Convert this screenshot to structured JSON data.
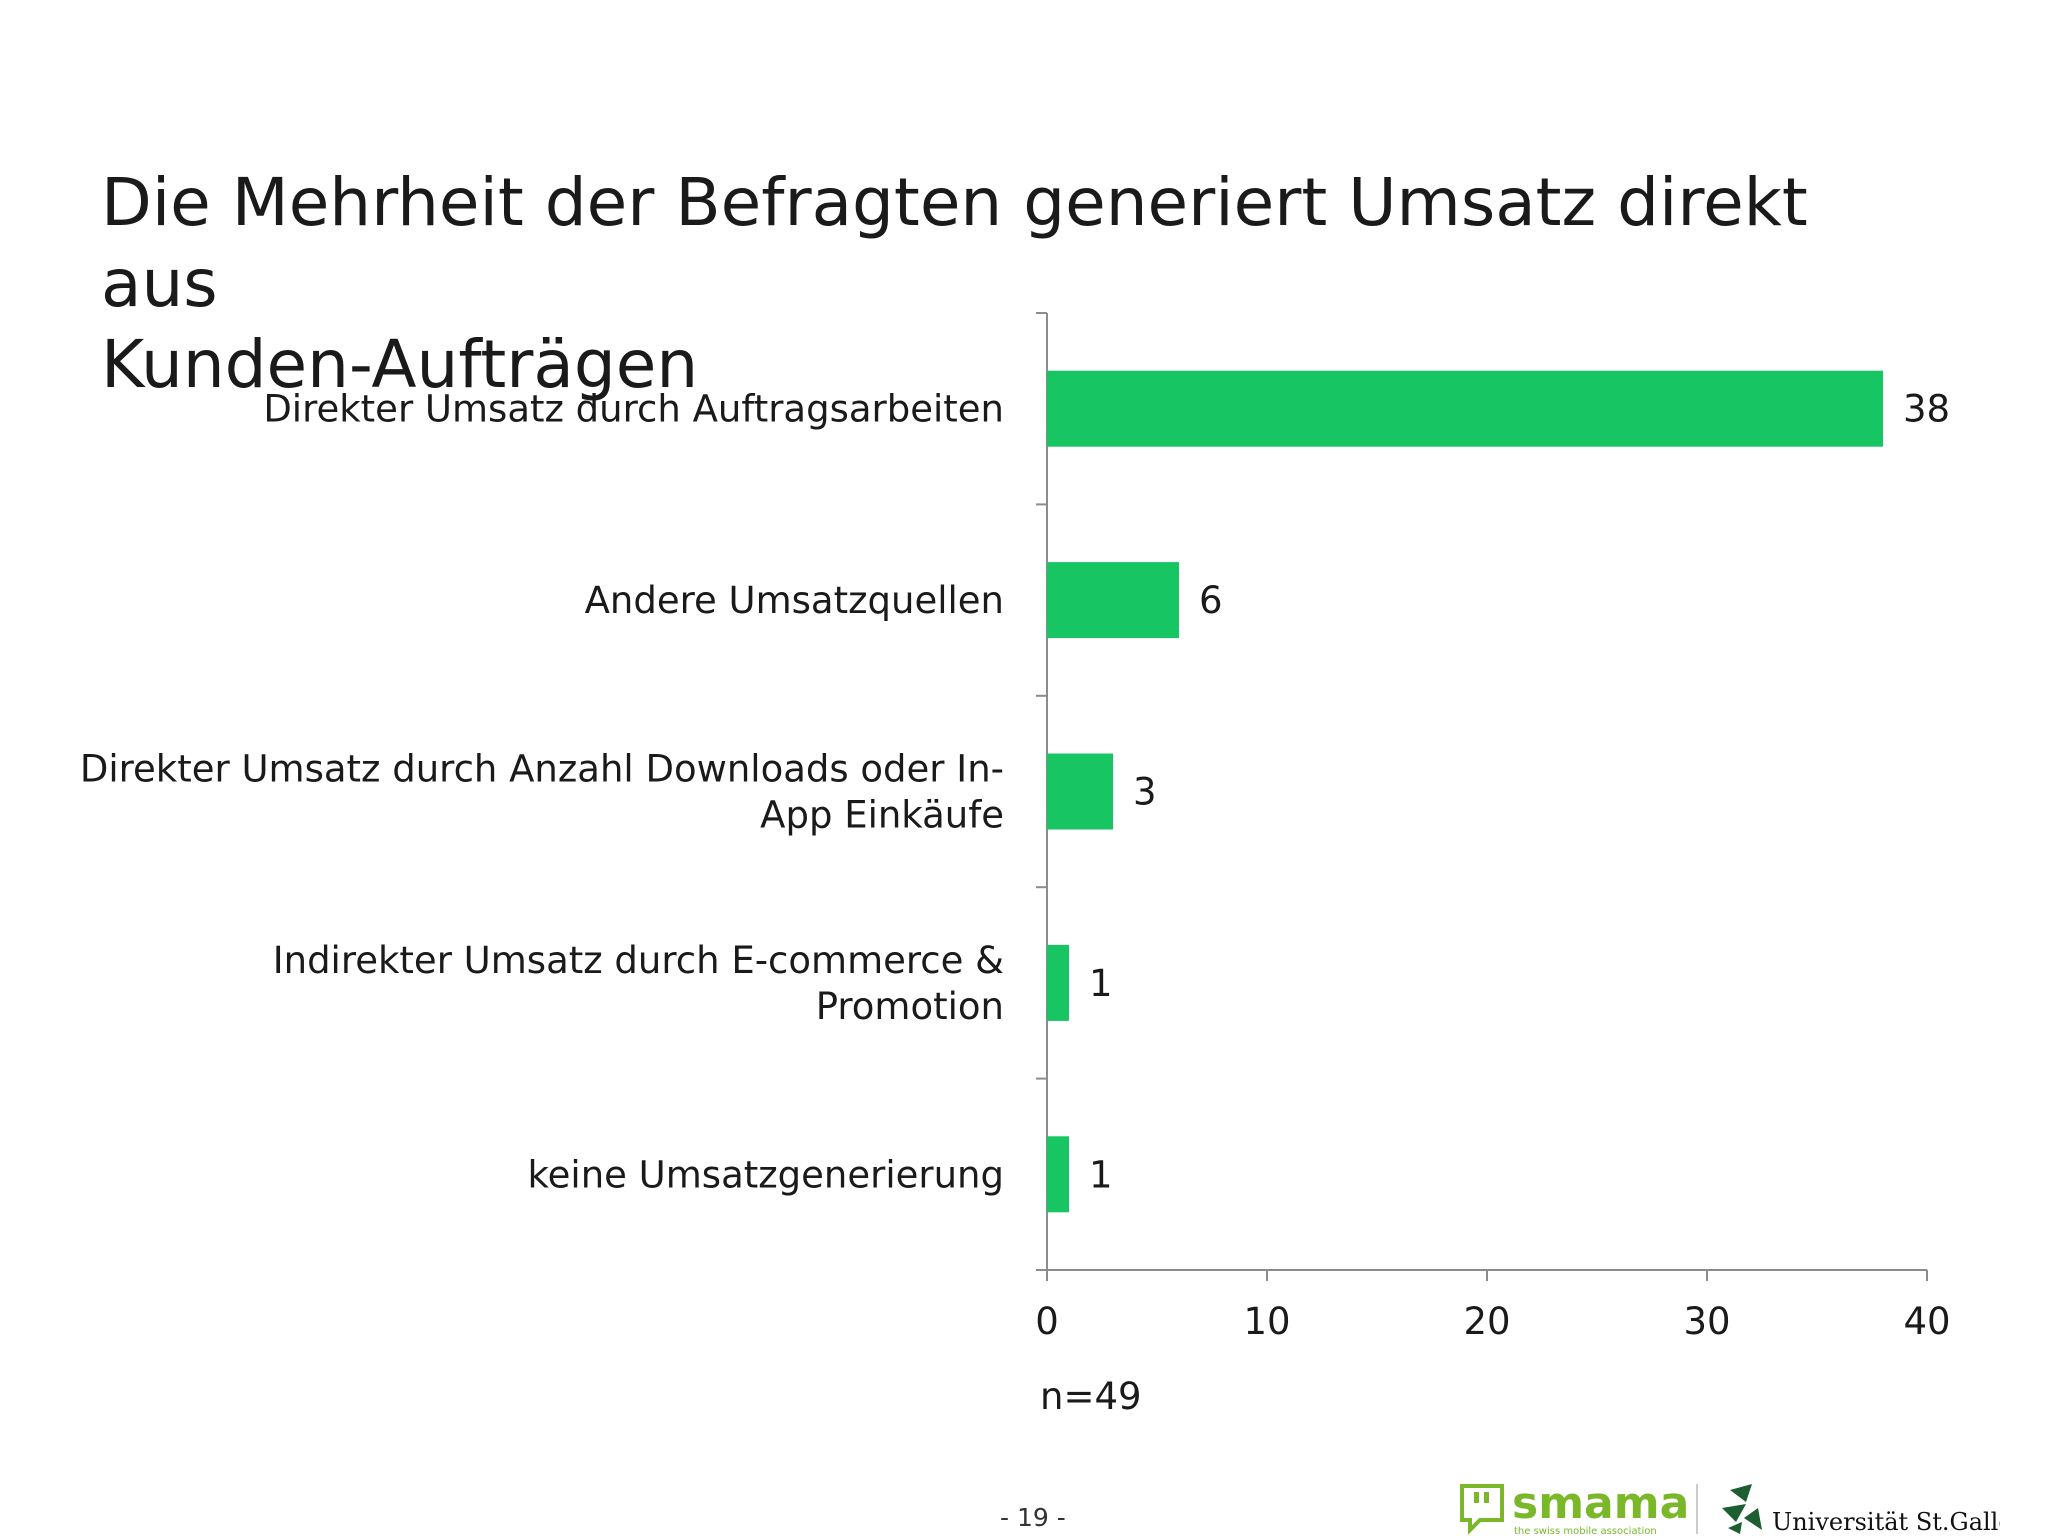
{
  "slide": {
    "title_line1": "Die Mehrheit der Befragten generiert Umsatz direkt aus",
    "title_line2": "Kunden-Aufträgen",
    "sample_size": "n=49",
    "page_number": "- 19 -"
  },
  "logos": {
    "smama": {
      "name": "smama",
      "tagline": "the swiss mobile association",
      "icon": "speech-bubble-quote-icon",
      "color": "#7ab829"
    },
    "unisg": {
      "name": "Universität St.Gallen",
      "icon": "unisg-leaf-emblem-icon",
      "color": "#1c5e2f"
    }
  },
  "chart_data": {
    "type": "bar",
    "orientation": "horizontal",
    "categories": [
      [
        "Direkter Umsatz durch Auftragsarbeiten"
      ],
      [
        "Andere Umsatzquellen"
      ],
      [
        "Direkter Umsatz durch Anzahl Downloads oder In-",
        "App Einkäufe"
      ],
      [
        "Indirekter Umsatz durch E-commerce &",
        "Promotion"
      ],
      [
        "keine Umsatzgenerierung"
      ]
    ],
    "values": [
      38,
      6,
      3,
      1,
      1
    ],
    "data_labels": [
      "38",
      "6",
      "3",
      "1",
      "1"
    ],
    "xlim": [
      0,
      40
    ],
    "xticks": [
      0,
      10,
      20,
      30,
      40
    ],
    "xtick_labels": [
      "0",
      "10",
      "20",
      "30",
      "40"
    ],
    "grid": false,
    "bar_color": "#17c662",
    "axis_color": "#8c8c8c"
  }
}
